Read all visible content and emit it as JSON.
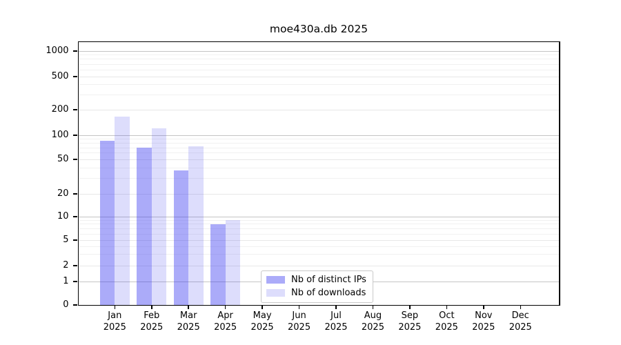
{
  "title": "moe430a.db 2025",
  "year": "2025",
  "months": [
    "Jan",
    "Feb",
    "Mar",
    "Apr",
    "May",
    "Jun",
    "Jul",
    "Aug",
    "Sep",
    "Oct",
    "Nov",
    "Dec"
  ],
  "y_axis": {
    "tick_labels": [
      "1000",
      "500",
      "200",
      "100",
      "50",
      "20",
      "10",
      "5",
      "2",
      "1",
      "0"
    ]
  },
  "legend": {
    "items": [
      {
        "label": "Nb of distinct IPs",
        "color": "#acacf7",
        "fill": "rgba(51,51,240,0.41)"
      },
      {
        "label": "Nb of downloads",
        "color": "#dcdcf8",
        "fill": "rgba(51,51,240,0.17)"
      }
    ]
  },
  "chart_data": {
    "type": "bar",
    "title": "moe430a.db 2025",
    "categories": [
      "Jan 2025",
      "Feb 2025",
      "Mar 2025",
      "Apr 2025",
      "May 2025",
      "Jun 2025",
      "Jul 2025",
      "Aug 2025",
      "Sep 2025",
      "Oct 2025",
      "Nov 2025",
      "Dec 2025"
    ],
    "series": [
      {
        "name": "Nb of distinct IPs",
        "color": "#acacf7",
        "values": [
          85,
          70,
          37,
          8,
          null,
          null,
          null,
          null,
          null,
          null,
          null,
          null
        ]
      },
      {
        "name": "Nb of downloads",
        "color": "#dcdcf8",
        "values": [
          165,
          120,
          73,
          9,
          null,
          null,
          null,
          null,
          null,
          null,
          null,
          null
        ]
      }
    ],
    "yscale": "symlog",
    "y_ticks": [
      0,
      1,
      2,
      5,
      10,
      20,
      50,
      100,
      200,
      500,
      1000
    ],
    "ylim": [
      0,
      1200
    ],
    "grid": true,
    "legend_position": "lower center",
    "xlabel": "",
    "ylabel": ""
  }
}
